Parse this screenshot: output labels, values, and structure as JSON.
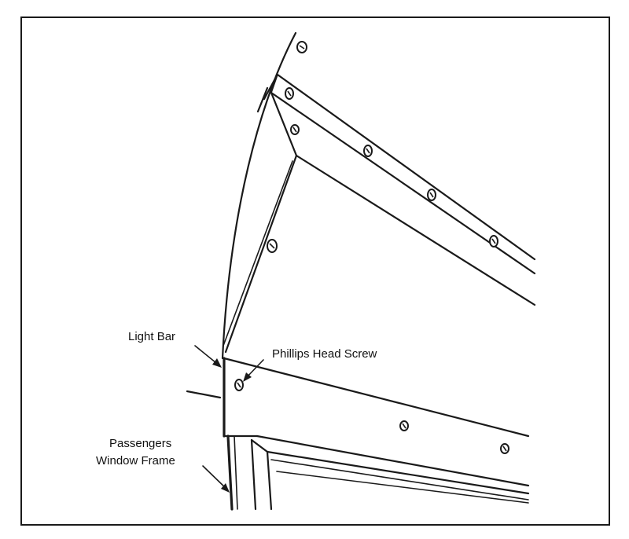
{
  "diagram": {
    "labels": {
      "light_bar": "Light Bar",
      "phillips_head_screw": "Phillips Head Screw",
      "passengers_window_frame_line1": "Passengers",
      "passengers_window_frame_line2": "Window Frame"
    },
    "colors": {
      "line": "#1a1a1a",
      "background": "#ffffff"
    }
  }
}
